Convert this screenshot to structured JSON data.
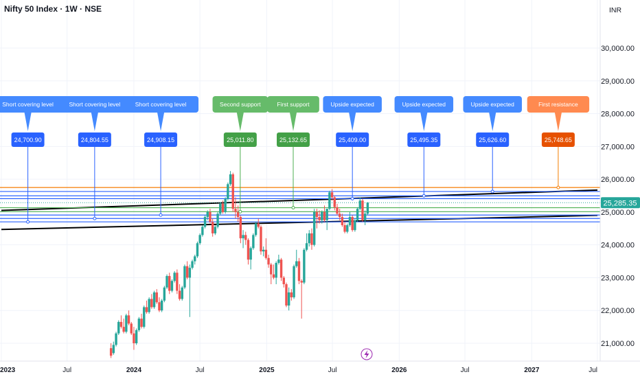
{
  "header": {
    "symbol_title": "Nifty 50 Index · 1W · NSE",
    "currency": "INR"
  },
  "colors": {
    "up": "#26a69a",
    "down": "#ef5350",
    "blue_level": "#2962ff",
    "green_level": "#4caf50",
    "orange_level": "#f57c00",
    "trendline": "#000000",
    "last_price_badge": "#26a69a",
    "blue_callout": "#448aff",
    "blue_callout_value": "#2962ff",
    "green_callout": "#66bb6a",
    "green_callout_value": "#43a047",
    "orange_callout": "#ff8a50",
    "orange_callout_value": "#e65100"
  },
  "chart_data": {
    "type": "candlestick",
    "timeframe": "1W",
    "y_axis": {
      "ticks": [
        21000,
        22000,
        23000,
        24000,
        25000,
        26000,
        27000,
        28000,
        29000,
        30000
      ],
      "tick_labels": [
        "21,000.00",
        "22,000.00",
        "23,000.00",
        "24,000.00",
        "25,000.00",
        "26,000.00",
        "27,000.00",
        "28,000.00",
        "29,000.00",
        "30,000.00"
      ],
      "range": [
        20500,
        31000
      ]
    },
    "x_axis": {
      "ticks": [
        {
          "date": "2023-01-01",
          "label": "2023",
          "major": true
        },
        {
          "date": "2023-07-01",
          "label": "Jul",
          "major": false
        },
        {
          "date": "2024-01-01",
          "label": "2024",
          "major": true
        },
        {
          "date": "2024-07-01",
          "label": "Jul",
          "major": false
        },
        {
          "date": "2025-01-01",
          "label": "2025",
          "major": true
        },
        {
          "date": "2025-07-01",
          "label": "Jul",
          "major": false
        },
        {
          "date": "2026-01-01",
          "label": "2026",
          "major": true
        },
        {
          "date": "2026-07-01",
          "label": "Jul",
          "major": false
        },
        {
          "date": "2027-01-01",
          "label": "2027",
          "major": true
        },
        {
          "date": "2027-07-01",
          "label": "Jul",
          "major": false
        }
      ],
      "range": [
        "2023-01-01",
        "2027-07-01"
      ]
    },
    "last_price": 25285.35,
    "last_price_label": "25,285.35",
    "trendlines": [
      {
        "start": {
          "date": "2023-01-01",
          "price": 25050
        },
        "end": {
          "date": "2027-07-01",
          "price": 25670
        }
      },
      {
        "start": {
          "date": "2023-01-01",
          "price": 24470
        },
        "end": {
          "date": "2027-07-01",
          "price": 24900
        }
      }
    ],
    "levels": [
      {
        "title": "Short covering level",
        "value": 24700.9,
        "value_label": "24,700.90",
        "kind": "blue",
        "date": "2023-03-15"
      },
      {
        "title": "Short covering level",
        "value": 24804.55,
        "value_label": "24,804.55",
        "kind": "blue",
        "date": "2023-09-15"
      },
      {
        "title": "Short covering level",
        "value": 24908.15,
        "value_label": "24,908.15",
        "kind": "blue",
        "date": "2024-03-15"
      },
      {
        "title": "Second support",
        "value": 25011.8,
        "value_label": "25,011.80",
        "kind": "green",
        "date": "2024-10-20"
      },
      {
        "title": "First support",
        "value": 25132.65,
        "value_label": "25,132.65",
        "kind": "green",
        "date": "2025-03-15"
      },
      {
        "title": "Upside expected",
        "value": 25409.0,
        "value_label": "25,409.00",
        "kind": "blue",
        "date": "2025-08-25"
      },
      {
        "title": "Upside expected",
        "value": 25495.35,
        "value_label": "25,495.35",
        "kind": "blue",
        "date": "2026-03-10"
      },
      {
        "title": "Upside expected",
        "value": 25626.6,
        "value_label": "25,626.60",
        "kind": "blue",
        "date": "2026-09-15"
      },
      {
        "title": "First resistance",
        "value": 25748.65,
        "value_label": "25,748.65",
        "kind": "orange",
        "date": "2027-03-15"
      }
    ],
    "candles": [
      {
        "date": "2023-10-30",
        "o": 20850,
        "h": 21000,
        "l": 20550,
        "c": 20620
      },
      {
        "date": "2023-11-06",
        "o": 20700,
        "h": 21050,
        "l": 20650,
        "c": 20950
      },
      {
        "date": "2023-11-13",
        "o": 20950,
        "h": 21350,
        "l": 20900,
        "c": 21300
      },
      {
        "date": "2023-11-20",
        "o": 21300,
        "h": 21700,
        "l": 21250,
        "c": 21650
      },
      {
        "date": "2023-11-27",
        "o": 21650,
        "h": 21850,
        "l": 21450,
        "c": 21500
      },
      {
        "date": "2023-12-04",
        "o": 21500,
        "h": 21750,
        "l": 21300,
        "c": 21350
      },
      {
        "date": "2023-12-11",
        "o": 21350,
        "h": 21900,
        "l": 21300,
        "c": 21850
      },
      {
        "date": "2023-12-18",
        "o": 21850,
        "h": 22000,
        "l": 21550,
        "c": 21600
      },
      {
        "date": "2023-12-25",
        "o": 21600,
        "h": 21650,
        "l": 21250,
        "c": 21300
      },
      {
        "date": "2024-01-01",
        "o": 21300,
        "h": 21500,
        "l": 20800,
        "c": 21000
      },
      {
        "date": "2024-01-08",
        "o": 21000,
        "h": 21450,
        "l": 20950,
        "c": 21400
      },
      {
        "date": "2024-01-15",
        "o": 21400,
        "h": 21800,
        "l": 21350,
        "c": 21750
      },
      {
        "date": "2024-01-22",
        "o": 21750,
        "h": 21900,
        "l": 21450,
        "c": 21500
      },
      {
        "date": "2024-01-29",
        "o": 21500,
        "h": 22150,
        "l": 21450,
        "c": 22100
      },
      {
        "date": "2024-02-05",
        "o": 22100,
        "h": 22300,
        "l": 21900,
        "c": 21950
      },
      {
        "date": "2024-02-12",
        "o": 21950,
        "h": 22400,
        "l": 21900,
        "c": 22350
      },
      {
        "date": "2024-02-19",
        "o": 22350,
        "h": 22500,
        "l": 22050,
        "c": 22100
      },
      {
        "date": "2024-02-26",
        "o": 22100,
        "h": 22600,
        "l": 22050,
        "c": 22550
      },
      {
        "date": "2024-03-04",
        "o": 22550,
        "h": 22650,
        "l": 22200,
        "c": 22250
      },
      {
        "date": "2024-03-11",
        "o": 22250,
        "h": 22400,
        "l": 21950,
        "c": 22000
      },
      {
        "date": "2024-03-18",
        "o": 22000,
        "h": 22350,
        "l": 21950,
        "c": 22300
      },
      {
        "date": "2024-03-25",
        "o": 22300,
        "h": 22750,
        "l": 22250,
        "c": 22700
      },
      {
        "date": "2024-04-01",
        "o": 22700,
        "h": 23100,
        "l": 22650,
        "c": 23050
      },
      {
        "date": "2024-04-08",
        "o": 23050,
        "h": 23150,
        "l": 22500,
        "c": 22600
      },
      {
        "date": "2024-04-15",
        "o": 22600,
        "h": 22950,
        "l": 22550,
        "c": 22900
      },
      {
        "date": "2024-04-22",
        "o": 22900,
        "h": 23200,
        "l": 22850,
        "c": 23150
      },
      {
        "date": "2024-04-29",
        "o": 23150,
        "h": 23250,
        "l": 22500,
        "c": 22600
      },
      {
        "date": "2024-05-06",
        "o": 22600,
        "h": 22800,
        "l": 22300,
        "c": 22350
      },
      {
        "date": "2024-05-13",
        "o": 22350,
        "h": 22750,
        "l": 22300,
        "c": 22700
      },
      {
        "date": "2024-05-20",
        "o": 22700,
        "h": 23400,
        "l": 22650,
        "c": 23350
      },
      {
        "date": "2024-05-27",
        "o": 23350,
        "h": 23500,
        "l": 22950,
        "c": 23000
      },
      {
        "date": "2024-06-03",
        "o": 23000,
        "h": 23400,
        "l": 21800,
        "c": 23300
      },
      {
        "date": "2024-06-10",
        "o": 23300,
        "h": 23550,
        "l": 23250,
        "c": 23500
      },
      {
        "date": "2024-06-17",
        "o": 23500,
        "h": 23700,
        "l": 23400,
        "c": 23650
      },
      {
        "date": "2024-06-24",
        "o": 23650,
        "h": 24100,
        "l": 23600,
        "c": 24050
      },
      {
        "date": "2024-07-01",
        "o": 24050,
        "h": 24350,
        "l": 24000,
        "c": 24300
      },
      {
        "date": "2024-07-08",
        "o": 24300,
        "h": 24600,
        "l": 24250,
        "c": 24550
      },
      {
        "date": "2024-07-15",
        "o": 24550,
        "h": 24900,
        "l": 24500,
        "c": 24850
      },
      {
        "date": "2024-07-22",
        "o": 24850,
        "h": 25050,
        "l": 24750,
        "c": 25000
      },
      {
        "date": "2024-07-29",
        "o": 25000,
        "h": 25100,
        "l": 24650,
        "c": 24700
      },
      {
        "date": "2024-08-05",
        "o": 24700,
        "h": 24800,
        "l": 24250,
        "c": 24350
      },
      {
        "date": "2024-08-12",
        "o": 24350,
        "h": 24600,
        "l": 24300,
        "c": 24550
      },
      {
        "date": "2024-08-19",
        "o": 24550,
        "h": 25000,
        "l": 24500,
        "c": 24950
      },
      {
        "date": "2024-08-26",
        "o": 24950,
        "h": 25300,
        "l": 24900,
        "c": 25250
      },
      {
        "date": "2024-09-02",
        "o": 25250,
        "h": 25350,
        "l": 24950,
        "c": 25000
      },
      {
        "date": "2024-09-09",
        "o": 25000,
        "h": 25450,
        "l": 24950,
        "c": 25400
      },
      {
        "date": "2024-09-16",
        "o": 25400,
        "h": 25900,
        "l": 25350,
        "c": 25850
      },
      {
        "date": "2024-09-23",
        "o": 25850,
        "h": 26250,
        "l": 25800,
        "c": 26150
      },
      {
        "date": "2024-09-30",
        "o": 26150,
        "h": 26200,
        "l": 25000,
        "c": 25100
      },
      {
        "date": "2024-10-07",
        "o": 25100,
        "h": 25450,
        "l": 24800,
        "c": 25000
      },
      {
        "date": "2024-10-14",
        "o": 25000,
        "h": 25200,
        "l": 24700,
        "c": 24850
      },
      {
        "date": "2024-10-21",
        "o": 24850,
        "h": 24900,
        "l": 24050,
        "c": 24200
      },
      {
        "date": "2024-10-28",
        "o": 24200,
        "h": 24450,
        "l": 23900,
        "c": 24300
      },
      {
        "date": "2024-11-04",
        "o": 24300,
        "h": 24400,
        "l": 24000,
        "c": 24150
      },
      {
        "date": "2024-11-11",
        "o": 24150,
        "h": 24200,
        "l": 23400,
        "c": 23550
      },
      {
        "date": "2024-11-18",
        "o": 23550,
        "h": 23950,
        "l": 23250,
        "c": 23900
      },
      {
        "date": "2024-11-25",
        "o": 23900,
        "h": 24350,
        "l": 23850,
        "c": 24300
      },
      {
        "date": "2024-12-02",
        "o": 24300,
        "h": 24700,
        "l": 24250,
        "c": 24650
      },
      {
        "date": "2024-12-09",
        "o": 24650,
        "h": 24800,
        "l": 24500,
        "c": 24550
      },
      {
        "date": "2024-12-16",
        "o": 24550,
        "h": 24600,
        "l": 23700,
        "c": 23800
      },
      {
        "date": "2024-12-23",
        "o": 23800,
        "h": 23950,
        "l": 23650,
        "c": 23850
      },
      {
        "date": "2024-12-30",
        "o": 23850,
        "h": 24200,
        "l": 23550,
        "c": 23600
      },
      {
        "date": "2025-01-06",
        "o": 23600,
        "h": 23700,
        "l": 23300,
        "c": 23400
      },
      {
        "date": "2025-01-13",
        "o": 23400,
        "h": 23450,
        "l": 22800,
        "c": 23100
      },
      {
        "date": "2025-01-20",
        "o": 23100,
        "h": 23400,
        "l": 22950,
        "c": 23000
      },
      {
        "date": "2025-01-27",
        "o": 23000,
        "h": 23500,
        "l": 22800,
        "c": 23450
      },
      {
        "date": "2025-02-03",
        "o": 23450,
        "h": 23700,
        "l": 23400,
        "c": 23550
      },
      {
        "date": "2025-02-10",
        "o": 23550,
        "h": 23600,
        "l": 22900,
        "c": 23000
      },
      {
        "date": "2025-02-17",
        "o": 23000,
        "h": 23050,
        "l": 22700,
        "c": 22800
      },
      {
        "date": "2025-02-24",
        "o": 22800,
        "h": 22850,
        "l": 22100,
        "c": 22150
      },
      {
        "date": "2025-03-03",
        "o": 22150,
        "h": 22700,
        "l": 22000,
        "c": 22550
      },
      {
        "date": "2025-03-10",
        "o": 22550,
        "h": 22650,
        "l": 22300,
        "c": 22400
      },
      {
        "date": "2025-03-17",
        "o": 22400,
        "h": 23400,
        "l": 22350,
        "c": 23350
      },
      {
        "date": "2025-03-24",
        "o": 23350,
        "h": 23850,
        "l": 23300,
        "c": 23500
      },
      {
        "date": "2025-03-31",
        "o": 23500,
        "h": 23600,
        "l": 22800,
        "c": 22900
      },
      {
        "date": "2025-04-07",
        "o": 22900,
        "h": 22950,
        "l": 21750,
        "c": 22850
      },
      {
        "date": "2025-04-14",
        "o": 22850,
        "h": 23900,
        "l": 22800,
        "c": 23850
      },
      {
        "date": "2025-04-21",
        "o": 23850,
        "h": 24350,
        "l": 23800,
        "c": 24050
      },
      {
        "date": "2025-04-28",
        "o": 24050,
        "h": 24450,
        "l": 23950,
        "c": 24350
      },
      {
        "date": "2025-05-05",
        "o": 24350,
        "h": 24500,
        "l": 23850,
        "c": 24000
      },
      {
        "date": "2025-05-12",
        "o": 24000,
        "h": 25100,
        "l": 23950,
        "c": 25000
      },
      {
        "date": "2025-05-19",
        "o": 25000,
        "h": 25100,
        "l": 24500,
        "c": 24850
      },
      {
        "date": "2025-05-26",
        "o": 24850,
        "h": 25050,
        "l": 24650,
        "c": 24750
      },
      {
        "date": "2025-06-02",
        "o": 24750,
        "h": 25050,
        "l": 24650,
        "c": 25000
      },
      {
        "date": "2025-06-09",
        "o": 25000,
        "h": 25200,
        "l": 24700,
        "c": 24750
      },
      {
        "date": "2025-06-16",
        "o": 24750,
        "h": 25100,
        "l": 24450,
        "c": 25100
      },
      {
        "date": "2025-06-23",
        "o": 25100,
        "h": 25650,
        "l": 25050,
        "c": 25600
      },
      {
        "date": "2025-06-30",
        "o": 25600,
        "h": 25700,
        "l": 25350,
        "c": 25450
      },
      {
        "date": "2025-07-07",
        "o": 25450,
        "h": 25500,
        "l": 25050,
        "c": 25150
      },
      {
        "date": "2025-07-14",
        "o": 25150,
        "h": 25250,
        "l": 24900,
        "c": 24950
      },
      {
        "date": "2025-07-21",
        "o": 24950,
        "h": 25100,
        "l": 24750,
        "c": 24850
      },
      {
        "date": "2025-07-28",
        "o": 24850,
        "h": 24950,
        "l": 24550,
        "c": 24600
      },
      {
        "date": "2025-08-04",
        "o": 24600,
        "h": 24700,
        "l": 24350,
        "c": 24400
      },
      {
        "date": "2025-08-11",
        "o": 24400,
        "h": 24650,
        "l": 24350,
        "c": 24600
      },
      {
        "date": "2025-08-18",
        "o": 24600,
        "h": 25000,
        "l": 24550,
        "c": 24850
      },
      {
        "date": "2025-08-25",
        "o": 24850,
        "h": 24900,
        "l": 24400,
        "c": 24450
      },
      {
        "date": "2025-09-01",
        "o": 24450,
        "h": 24800,
        "l": 24400,
        "c": 24750
      },
      {
        "date": "2025-09-08",
        "o": 24750,
        "h": 25150,
        "l": 24700,
        "c": 25100
      },
      {
        "date": "2025-09-15",
        "o": 25100,
        "h": 25450,
        "l": 25050,
        "c": 25350
      },
      {
        "date": "2025-09-22",
        "o": 25350,
        "h": 25400,
        "l": 24700,
        "c": 24750
      },
      {
        "date": "2025-09-29",
        "o": 24750,
        "h": 25050,
        "l": 24600,
        "c": 24950
      },
      {
        "date": "2025-10-06",
        "o": 24950,
        "h": 25300,
        "l": 24900,
        "c": 25285.35
      }
    ]
  }
}
